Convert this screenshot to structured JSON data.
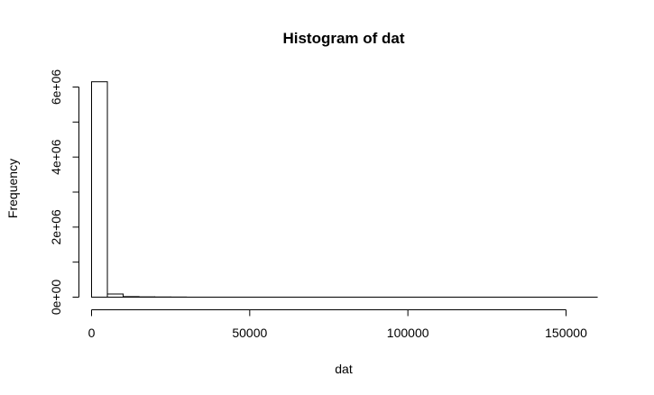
{
  "chart_data": {
    "type": "bar",
    "title": "Histogram of dat",
    "xlabel": "dat",
    "ylabel": "Frequency",
    "bin_width": 5000,
    "bins": [
      {
        "x0": 0,
        "x1": 5000,
        "count": 6150000
      },
      {
        "x0": 5000,
        "x1": 10000,
        "count": 90000
      },
      {
        "x0": 10000,
        "x1": 15000,
        "count": 15000
      },
      {
        "x0": 15000,
        "x1": 20000,
        "count": 8000
      },
      {
        "x0": 20000,
        "x1": 25000,
        "count": 5000
      },
      {
        "x0": 25000,
        "x1": 30000,
        "count": 3000
      },
      {
        "x0": 30000,
        "x1": 35000,
        "count": 0
      },
      {
        "x0": 35000,
        "x1": 40000,
        "count": 0
      },
      {
        "x0": 40000,
        "x1": 45000,
        "count": 0
      },
      {
        "x0": 45000,
        "x1": 50000,
        "count": 0
      },
      {
        "x0": 50000,
        "x1": 55000,
        "count": 0
      },
      {
        "x0": 55000,
        "x1": 60000,
        "count": 0
      },
      {
        "x0": 60000,
        "x1": 65000,
        "count": 0
      },
      {
        "x0": 65000,
        "x1": 70000,
        "count": 0
      },
      {
        "x0": 70000,
        "x1": 75000,
        "count": 0
      },
      {
        "x0": 75000,
        "x1": 80000,
        "count": 0
      },
      {
        "x0": 80000,
        "x1": 85000,
        "count": 0
      },
      {
        "x0": 85000,
        "x1": 90000,
        "count": 0
      },
      {
        "x0": 90000,
        "x1": 95000,
        "count": 0
      },
      {
        "x0": 95000,
        "x1": 100000,
        "count": 0
      },
      {
        "x0": 100000,
        "x1": 105000,
        "count": 0
      },
      {
        "x0": 105000,
        "x1": 110000,
        "count": 0
      },
      {
        "x0": 110000,
        "x1": 115000,
        "count": 0
      },
      {
        "x0": 115000,
        "x1": 120000,
        "count": 0
      },
      {
        "x0": 120000,
        "x1": 125000,
        "count": 0
      },
      {
        "x0": 125000,
        "x1": 130000,
        "count": 0
      },
      {
        "x0": 130000,
        "x1": 135000,
        "count": 0
      },
      {
        "x0": 135000,
        "x1": 140000,
        "count": 0
      },
      {
        "x0": 140000,
        "x1": 145000,
        "count": 0
      },
      {
        "x0": 145000,
        "x1": 150000,
        "count": 0
      },
      {
        "x0": 150000,
        "x1": 155000,
        "count": 0
      },
      {
        "x0": 155000,
        "x1": 160000,
        "count": 0
      }
    ],
    "xlim": [
      0,
      160000
    ],
    "ylim": [
      0,
      6200000
    ],
    "x_ticks": [
      0,
      50000,
      100000,
      150000
    ],
    "x_tick_labels": [
      "0",
      "50000",
      "100000",
      "150000"
    ],
    "y_ticks": [
      0,
      1000000,
      2000000,
      3000000,
      4000000,
      5000000,
      6000000
    ],
    "y_tick_labels": [
      "0e+00",
      "",
      "2e+06",
      "",
      "4e+06",
      "",
      "6e+06"
    ],
    "grid": false,
    "bar_fill": "#ffffff",
    "bar_stroke": "#000000"
  }
}
